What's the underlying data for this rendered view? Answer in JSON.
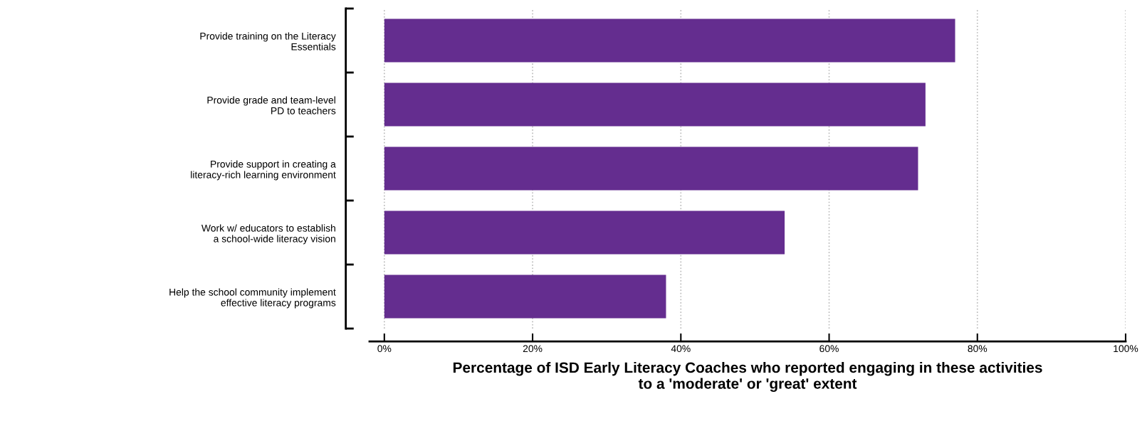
{
  "chart_data": {
    "type": "bar",
    "orientation": "horizontal",
    "categories": [
      "Provide training on the Literacy\nEssentials",
      "Provide grade and team-level\nPD to teachers",
      "Provide support in creating a\nliteracy-rich learning environment",
      "Work w/ educators to establish\na school-wide literacy vision",
      "Help the school community implement\neffective literacy programs"
    ],
    "values": [
      77,
      73,
      72,
      54,
      38
    ],
    "color": "#642d8f",
    "xlabel": "Percentage of ISD Early Literacy Coaches who reported engaging in these activities\nto a 'moderate' or 'great' extent",
    "xlim": [
      -2,
      100
    ],
    "xticks": [
      {
        "value": 0,
        "label": "0%"
      },
      {
        "value": 20,
        "label": "20%"
      },
      {
        "value": 40,
        "label": "40%"
      },
      {
        "value": 60,
        "label": "60%"
      },
      {
        "value": 80,
        "label": "80%"
      },
      {
        "value": 100,
        "label": "100%"
      }
    ],
    "grid": "x"
  }
}
